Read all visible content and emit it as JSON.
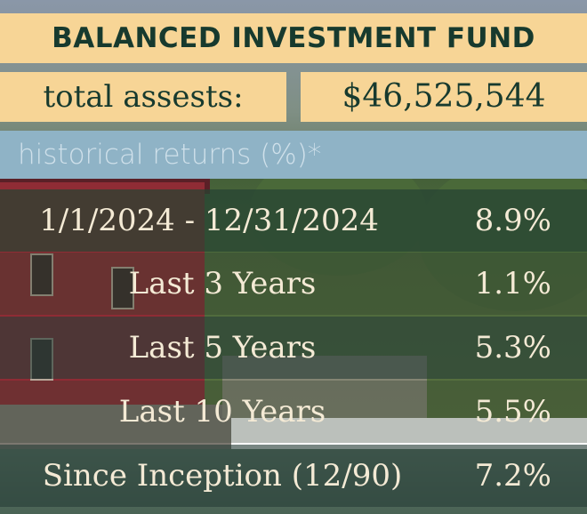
{
  "title": "BALANCED INVESTMENT FUND",
  "assets": {
    "label": "total assests:",
    "value": "$46,525,544"
  },
  "subheading": "historical returns (%)*",
  "returns": [
    {
      "period": "1/1/2024 - 12/31/2024",
      "value": "8.9%"
    },
    {
      "period": "Last 3 Years",
      "value": "1.1%"
    },
    {
      "period": "Last 5 Years",
      "value": "5.3%"
    },
    {
      "period": "Last 10 Years",
      "value": "5.5%"
    },
    {
      "period": "Since Inception (12/90)",
      "value": "7.2%"
    }
  ],
  "colors": {
    "banner": "#f7d596",
    "text_dark": "#173a2e",
    "subheading_bar": "#8fb3c6",
    "row_text": "#f4ead5"
  }
}
